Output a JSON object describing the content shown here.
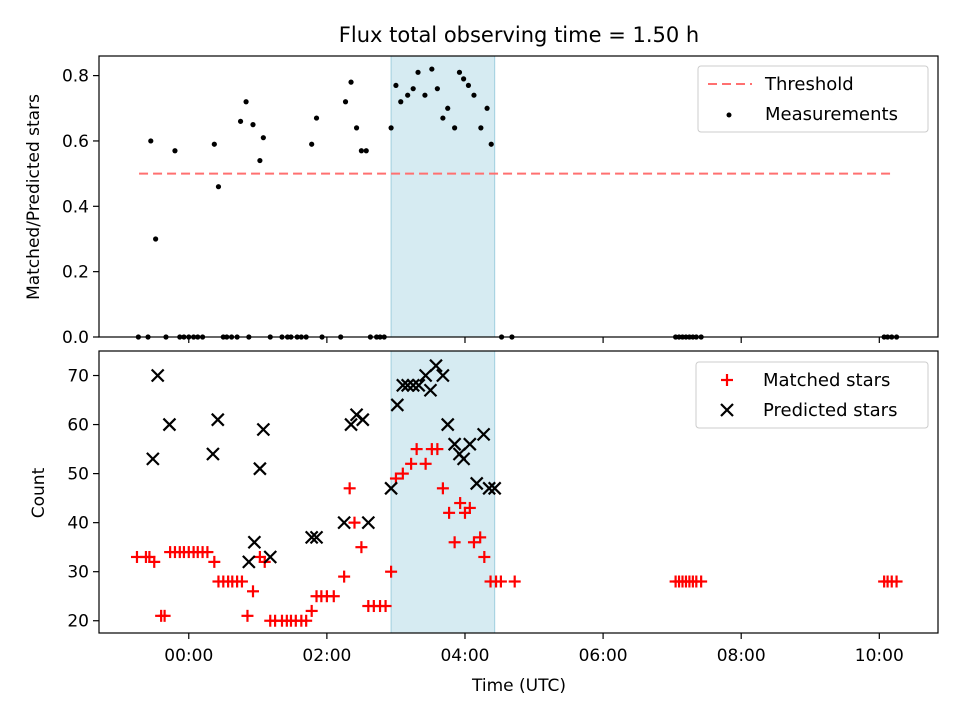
{
  "title": "Flux total observing time = 1.50 h",
  "chart_data": [
    {
      "type": "scatter",
      "ylabel": "Matched/Predicted stars",
      "xlim_hours": [
        -1.3,
        10.85
      ],
      "ylim": [
        0,
        0.86
      ],
      "yticks": [
        0.0,
        0.2,
        0.4,
        0.6,
        0.8
      ],
      "highlight_span_hours": [
        2.93,
        4.43
      ],
      "legend": {
        "placement": "top-right",
        "entries": [
          "Threshold",
          "Measurements"
        ]
      },
      "threshold": {
        "name": "Threshold",
        "y": 0.5,
        "x_range": [
          -0.72,
          10.17
        ],
        "color": "#ff7070"
      },
      "series": [
        {
          "name": "Measurements",
          "x": [
            -0.73,
            -0.59,
            -0.55,
            -0.48,
            -0.33,
            -0.2,
            -0.13,
            -0.07,
            0.0,
            0.07,
            0.13,
            0.2,
            0.37,
            0.43,
            0.5,
            0.55,
            0.62,
            0.7,
            0.75,
            0.83,
            0.87,
            0.93,
            1.03,
            1.08,
            1.18,
            1.35,
            1.43,
            1.48,
            1.57,
            1.63,
            1.7,
            1.78,
            1.85,
            1.93,
            2.2,
            2.27,
            2.35,
            2.43,
            2.5,
            2.57,
            2.63,
            2.72,
            2.77,
            2.83,
            2.93,
            3.0,
            3.07,
            3.17,
            3.25,
            3.32,
            3.42,
            3.52,
            3.6,
            3.68,
            3.75,
            3.85,
            3.92,
            3.98,
            4.05,
            4.13,
            4.23,
            4.32,
            4.38,
            4.53,
            4.68,
            7.05,
            7.1,
            7.15,
            7.2,
            7.25,
            7.3,
            7.35,
            7.42,
            10.07,
            10.12,
            10.18,
            10.25
          ],
          "y": [
            0,
            0,
            0.6,
            0.3,
            0,
            0.57,
            0,
            0,
            0,
            0,
            0,
            0,
            0.59,
            0.46,
            0,
            0,
            0,
            0,
            0.66,
            0.72,
            0,
            0.65,
            0.54,
            0.61,
            0,
            0,
            0,
            0,
            0,
            0,
            0,
            0.59,
            0.67,
            0,
            0,
            0.72,
            0.78,
            0.64,
            0.57,
            0.57,
            0,
            0,
            0,
            0,
            0.64,
            0.77,
            0.72,
            0.74,
            0.76,
            0.81,
            0.74,
            0.82,
            0.76,
            0.67,
            0.7,
            0.64,
            0.81,
            0.79,
            0.77,
            0.74,
            0.64,
            0.7,
            0.59,
            0,
            0,
            0,
            0,
            0,
            0,
            0,
            0,
            0,
            0,
            0,
            0,
            0,
            0
          ],
          "color": "#000000"
        }
      ]
    },
    {
      "type": "scatter",
      "xlabel": "Time (UTC)",
      "ylabel": "Count",
      "xlim_hours": [
        -1.3,
        10.85
      ],
      "ylim": [
        17.5,
        75
      ],
      "yticks": [
        20,
        30,
        40,
        50,
        60,
        70
      ],
      "xtick_hours": [
        0,
        2,
        4,
        6,
        8,
        10
      ],
      "xtick_labels": [
        "00:00",
        "02:00",
        "04:00",
        "06:00",
        "08:00",
        "10:00"
      ],
      "highlight_span_hours": [
        2.93,
        4.43
      ],
      "legend": {
        "placement": "top-right",
        "entries": [
          "Matched stars",
          "Predicted stars"
        ]
      },
      "series": [
        {
          "name": "Matched stars",
          "marker": "plus",
          "color": "#ff0000",
          "x": [
            -0.75,
            -0.62,
            -0.57,
            -0.5,
            -0.4,
            -0.35,
            -0.27,
            -0.2,
            -0.13,
            -0.07,
            0.0,
            0.07,
            0.13,
            0.2,
            0.27,
            0.37,
            0.43,
            0.5,
            0.57,
            0.63,
            0.7,
            0.77,
            0.85,
            0.93,
            1.03,
            1.1,
            1.18,
            1.25,
            1.35,
            1.42,
            1.48,
            1.55,
            1.63,
            1.7,
            1.78,
            1.85,
            1.92,
            2.0,
            2.1,
            2.25,
            2.33,
            2.4,
            2.5,
            2.6,
            2.68,
            2.77,
            2.85,
            2.93,
            3.0,
            3.1,
            3.22,
            3.3,
            3.43,
            3.52,
            3.6,
            3.68,
            3.77,
            3.85,
            3.93,
            4.0,
            4.07,
            4.13,
            4.22,
            4.28,
            4.37,
            4.45,
            4.52,
            4.72,
            7.05,
            7.1,
            7.15,
            7.2,
            7.25,
            7.3,
            7.35,
            7.42,
            10.07,
            10.12,
            10.18,
            10.25
          ],
          "y": [
            33,
            33,
            33,
            32,
            21,
            21,
            34,
            34,
            34,
            34,
            34,
            34,
            34,
            34,
            34,
            32,
            28,
            28,
            28,
            28,
            28,
            28,
            21,
            26,
            33,
            32,
            20,
            20,
            20,
            20,
            20,
            20,
            20,
            20,
            22,
            25,
            25,
            25,
            25,
            29,
            47,
            40,
            35,
            23,
            23,
            23,
            23,
            30,
            49,
            50,
            52,
            55,
            52,
            55,
            55,
            47,
            42,
            36,
            44,
            42,
            43,
            36,
            37,
            33,
            28,
            28,
            28,
            28,
            28,
            28,
            28,
            28,
            28,
            28,
            28,
            28,
            28,
            28,
            28,
            28
          ]
        },
        {
          "name": "Predicted stars",
          "marker": "x",
          "color": "#000000",
          "x": [
            -0.52,
            -0.45,
            -0.28,
            0.35,
            0.42,
            0.87,
            0.95,
            1.03,
            1.08,
            1.18,
            1.78,
            1.85,
            2.25,
            2.35,
            2.43,
            2.52,
            2.6,
            2.93,
            3.02,
            3.1,
            3.17,
            3.25,
            3.33,
            3.43,
            3.5,
            3.58,
            3.68,
            3.75,
            3.85,
            3.92,
            3.98,
            4.07,
            4.17,
            4.27,
            4.35,
            4.43
          ],
          "y": [
            53,
            70,
            60,
            54,
            61,
            32,
            36,
            51,
            59,
            33,
            37,
            37,
            40,
            60,
            62,
            61,
            40,
            47,
            64,
            68,
            68,
            68,
            68,
            70,
            67,
            72,
            70,
            60,
            56,
            54,
            53,
            56,
            48,
            58,
            47,
            47
          ]
        }
      ]
    }
  ]
}
